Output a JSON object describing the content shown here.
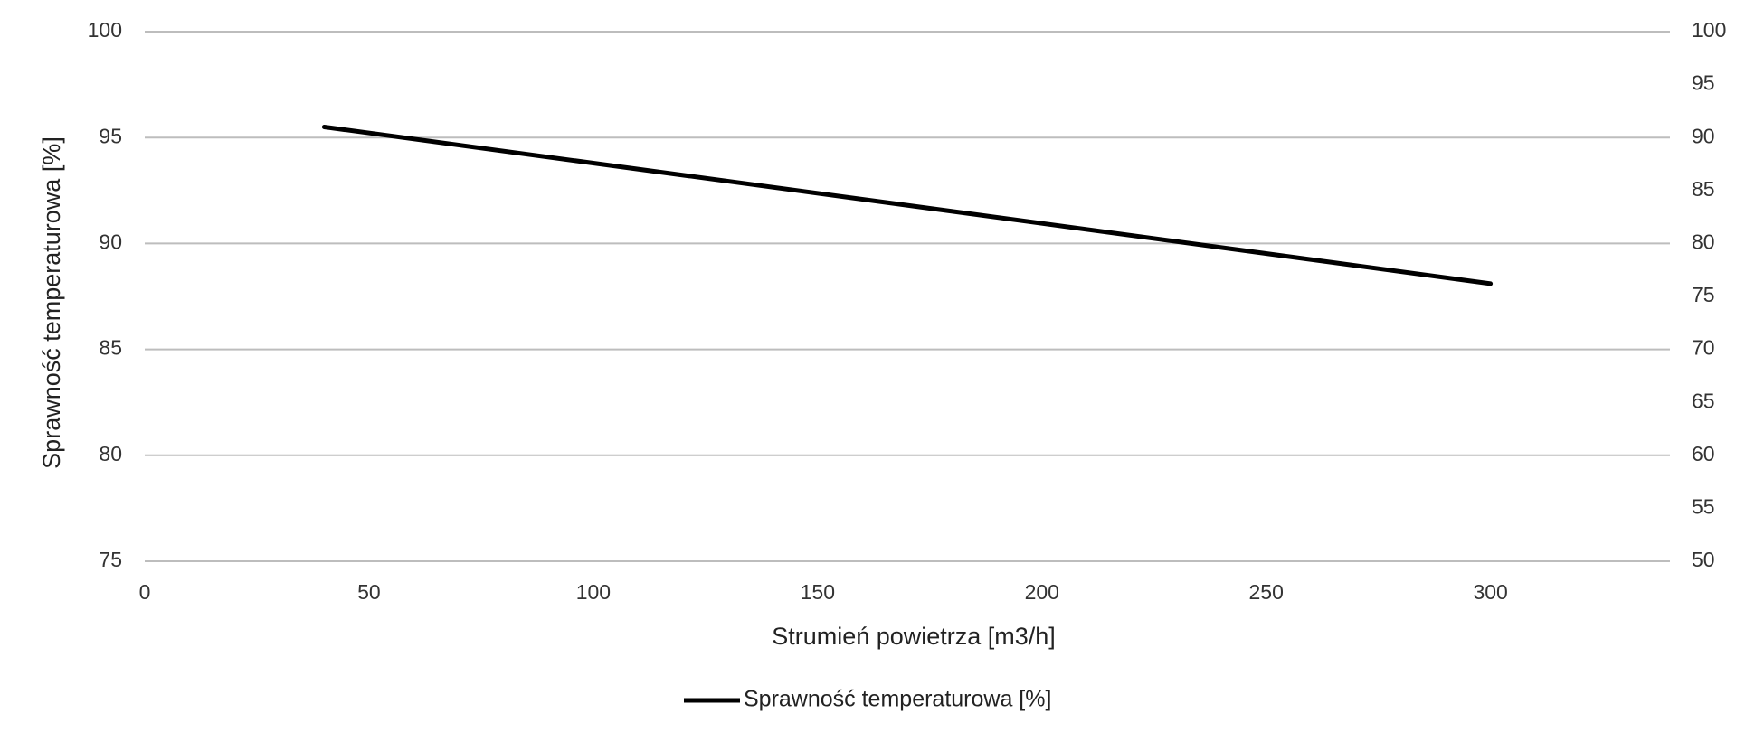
{
  "chart_data": {
    "type": "line",
    "title": "",
    "xlabel": "Strumień powietrza [m3/h]",
    "ylabel": "Sprawność temperaturowa [%]",
    "xlim": [
      0,
      340
    ],
    "x_ticks": [
      0,
      50,
      100,
      150,
      200,
      250,
      300
    ],
    "ylim": [
      75,
      100
    ],
    "y_ticks": [
      75,
      80,
      85,
      90,
      95,
      100
    ],
    "y2lim": [
      50,
      100
    ],
    "y2_ticks": [
      50,
      55,
      60,
      65,
      70,
      75,
      80,
      85,
      90,
      95,
      100
    ],
    "grid": true,
    "legend_position": "bottom-center",
    "series": [
      {
        "name": "Sprawność temperaturowa [%]",
        "axis": "left",
        "color": "#000000",
        "x": [
          40,
          300
        ],
        "y": [
          95.5,
          88.1
        ]
      }
    ]
  }
}
